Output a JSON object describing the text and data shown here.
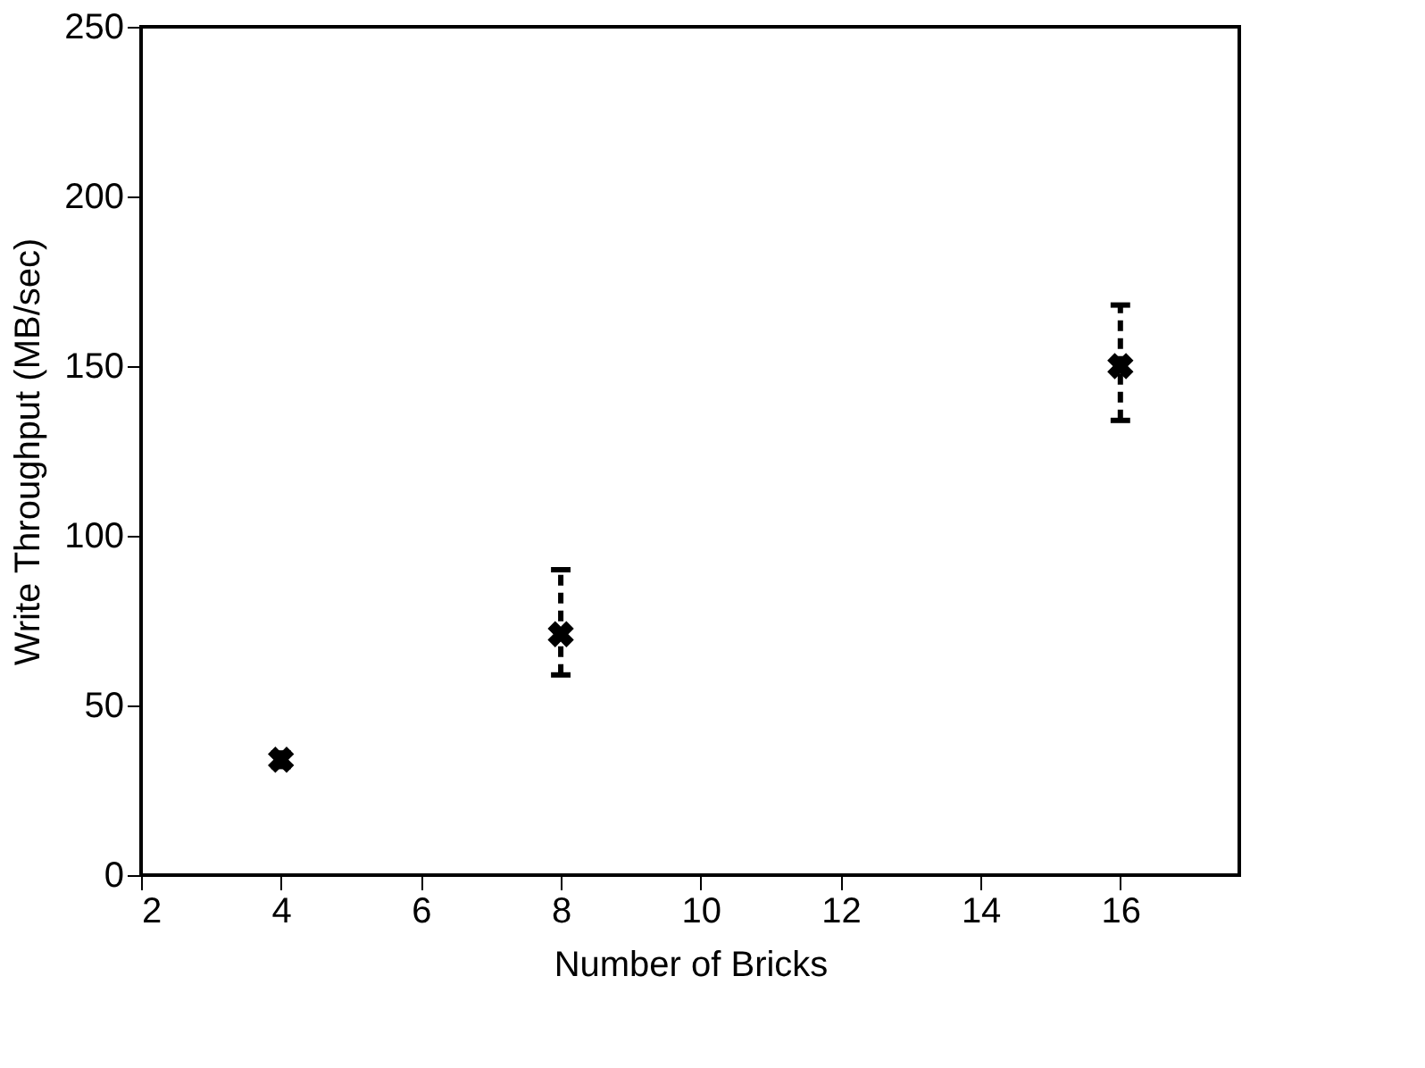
{
  "chart_data": {
    "type": "scatter",
    "xlabel": "Number of Bricks",
    "ylabel": "Write Throughput (MB/sec)",
    "x": [
      4,
      8,
      16
    ],
    "values": [
      34,
      71,
      150
    ],
    "errors": [
      [
        32,
        36
      ],
      [
        59,
        90
      ],
      [
        134,
        168
      ]
    ],
    "color": "#000000",
    "marker": "cross",
    "line_style": "dashed",
    "xlim": [
      2,
      17.7
    ],
    "xticks": [
      2,
      4,
      6,
      8,
      10,
      12,
      14,
      16
    ],
    "ylim": [
      0,
      250
    ],
    "yticks": [
      0,
      50,
      100,
      150,
      200,
      250
    ],
    "grid": false
  }
}
